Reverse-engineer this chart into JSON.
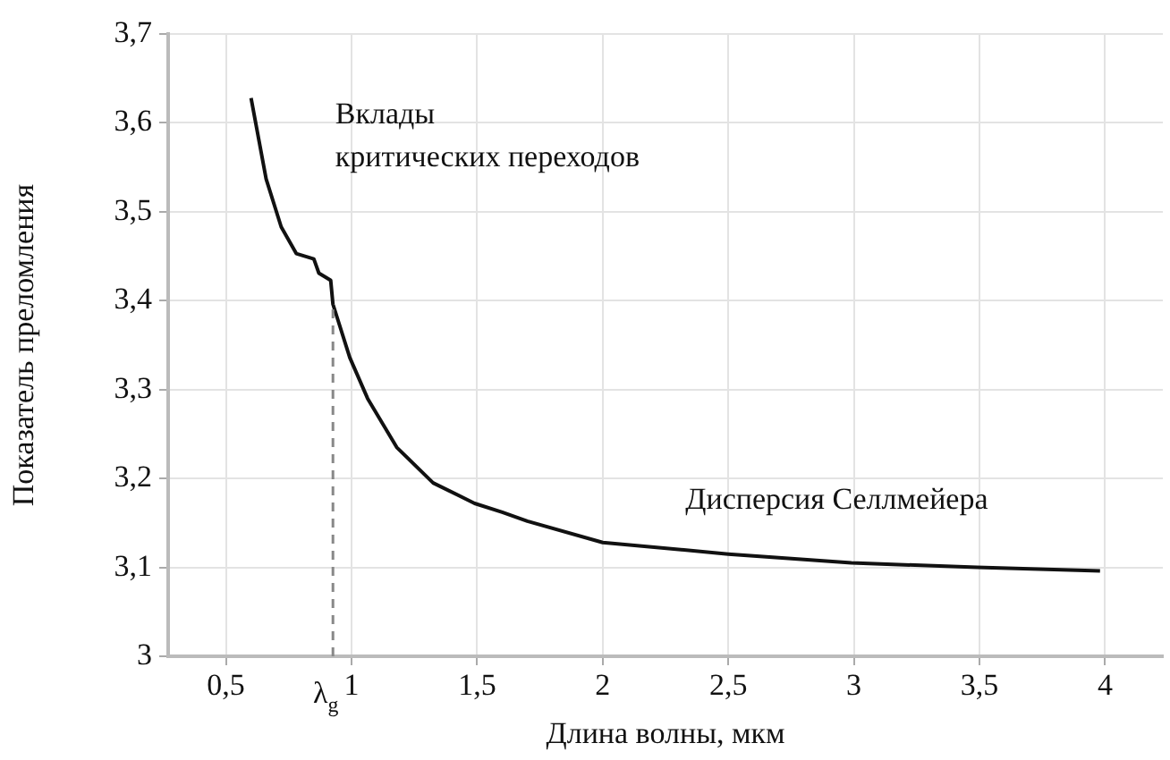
{
  "chart_data": {
    "type": "line",
    "xlabel": "Длина волны, мкм",
    "ylabel": "Показатель преломления",
    "x": [
      0.6,
      0.66,
      0.72,
      0.78,
      0.85,
      0.87,
      0.917,
      0.926,
      0.993,
      1.064,
      1.18,
      1.325,
      1.49,
      1.6,
      1.7,
      2.0,
      2.5,
      2.99,
      3.49,
      3.98
    ],
    "series": [
      {
        "color": "#111111",
        "values": [
          3.628,
          3.537,
          3.483,
          3.453,
          3.447,
          3.431,
          3.423,
          3.396,
          3.336,
          3.29,
          3.235,
          3.195,
          3.172,
          3.162,
          3.152,
          3.128,
          3.115,
          3.105,
          3.1,
          3.096
        ]
      }
    ],
    "xlim": [
      0.27,
      4.23
    ],
    "xticks": [
      {
        "value": 0.5,
        "label": "0,5"
      },
      1,
      {
        "value": 1.5,
        "label": "1,5"
      },
      2,
      {
        "value": 2.5,
        "label": "2,5"
      },
      3,
      {
        "value": 3.5,
        "label": "3,5"
      },
      4
    ],
    "ylim": [
      3,
      3.7
    ],
    "yticks": [
      3,
      {
        "value": 3.1,
        "label": "3,1"
      },
      {
        "value": 3.2,
        "label": "3,2"
      },
      {
        "value": 3.3,
        "label": "3,3"
      },
      {
        "value": 3.4,
        "label": "3,4"
      },
      {
        "value": 3.5,
        "label": "3,5"
      },
      {
        "value": 3.6,
        "label": "3,6"
      },
      {
        "value": 3.7,
        "label": "3,7"
      }
    ],
    "ref_lines": [
      {
        "axis": "x",
        "value": 0.926,
        "label": "λ$_{g}$",
        "line_style": "dashed",
        "color": "#888888"
      }
    ],
    "annotations": [
      "Вклады\nкритических переходов",
      "Дисперсия Селлмейера"
    ],
    "grid": true,
    "legend": false,
    "marker": "none",
    "line_style": "solid"
  }
}
